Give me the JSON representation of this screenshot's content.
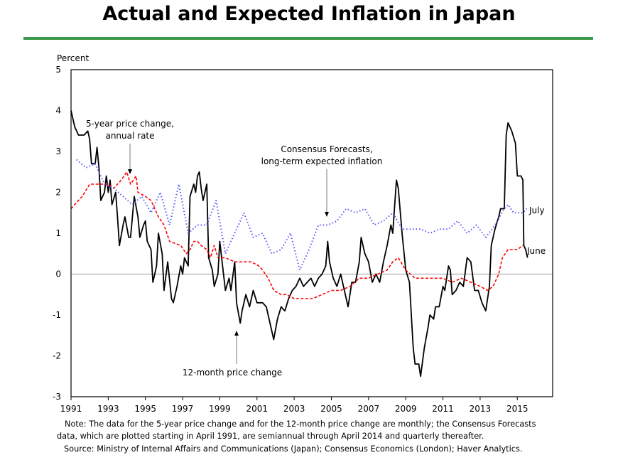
{
  "chart_data": {
    "type": "line",
    "title": "Actual and Expected Inflation in Japan",
    "ylabel": "Percent",
    "ylim": [
      -3,
      5
    ],
    "xlim": [
      1991,
      2016.9
    ],
    "yticks": [
      "5",
      "4",
      "3",
      "2",
      "1",
      "0",
      "-1",
      "-2",
      "-3"
    ],
    "xticks": [
      "1991",
      "1993",
      "1995",
      "1997",
      "1999",
      "2001",
      "2003",
      "2005",
      "2007",
      "2009",
      "2011",
      "2013",
      "2015"
    ],
    "grid": false,
    "zero_line": true,
    "series": [
      {
        "name": "12-month price change",
        "style": "solid",
        "color": "#000000",
        "points": [
          [
            1991.0,
            4.0
          ],
          [
            1991.2,
            3.6
          ],
          [
            1991.4,
            3.4
          ],
          [
            1991.7,
            3.4
          ],
          [
            1991.9,
            3.5
          ],
          [
            1992.0,
            3.3
          ],
          [
            1992.1,
            2.7
          ],
          [
            1992.3,
            2.7
          ],
          [
            1992.4,
            3.1
          ],
          [
            1992.5,
            2.6
          ],
          [
            1992.6,
            1.8
          ],
          [
            1992.8,
            2.0
          ],
          [
            1992.9,
            2.4
          ],
          [
            1993.0,
            2.0
          ],
          [
            1993.1,
            2.3
          ],
          [
            1993.2,
            1.7
          ],
          [
            1993.4,
            2.0
          ],
          [
            1993.5,
            1.4
          ],
          [
            1993.6,
            0.7
          ],
          [
            1993.8,
            1.2
          ],
          [
            1993.9,
            1.4
          ],
          [
            1994.1,
            0.9
          ],
          [
            1994.2,
            0.9
          ],
          [
            1994.4,
            1.9
          ],
          [
            1994.6,
            1.4
          ],
          [
            1994.7,
            0.9
          ],
          [
            1994.9,
            1.2
          ],
          [
            1995.0,
            1.3
          ],
          [
            1995.1,
            0.8
          ],
          [
            1995.3,
            0.6
          ],
          [
            1995.4,
            -0.2
          ],
          [
            1995.6,
            0.2
          ],
          [
            1995.7,
            1.0
          ],
          [
            1995.9,
            0.5
          ],
          [
            1996.0,
            -0.4
          ],
          [
            1996.2,
            0.3
          ],
          [
            1996.4,
            -0.6
          ],
          [
            1996.5,
            -0.7
          ],
          [
            1996.7,
            -0.3
          ],
          [
            1996.9,
            0.2
          ],
          [
            1997.0,
            0.0
          ],
          [
            1997.1,
            0.4
          ],
          [
            1997.3,
            0.2
          ],
          [
            1997.4,
            1.9
          ],
          [
            1997.6,
            2.2
          ],
          [
            1997.7,
            2.0
          ],
          [
            1997.8,
            2.4
          ],
          [
            1997.9,
            2.5
          ],
          [
            1998.0,
            2.1
          ],
          [
            1998.1,
            1.8
          ],
          [
            1998.3,
            2.2
          ],
          [
            1998.4,
            0.4
          ],
          [
            1998.6,
            0.1
          ],
          [
            1998.7,
            -0.3
          ],
          [
            1998.9,
            0.0
          ],
          [
            1999.0,
            0.8
          ],
          [
            1999.1,
            0.4
          ],
          [
            1999.3,
            -0.4
          ],
          [
            1999.5,
            -0.1
          ],
          [
            1999.6,
            -0.4
          ],
          [
            1999.8,
            0.3
          ],
          [
            1999.9,
            -0.7
          ],
          [
            2000.1,
            -1.2
          ],
          [
            2000.2,
            -0.9
          ],
          [
            2000.4,
            -0.5
          ],
          [
            2000.6,
            -0.8
          ],
          [
            2000.8,
            -0.4
          ],
          [
            2001.0,
            -0.7
          ],
          [
            2001.3,
            -0.7
          ],
          [
            2001.5,
            -0.8
          ],
          [
            2001.7,
            -1.2
          ],
          [
            2001.9,
            -1.6
          ],
          [
            2002.1,
            -1.1
          ],
          [
            2002.3,
            -0.8
          ],
          [
            2002.5,
            -0.9
          ],
          [
            2002.7,
            -0.6
          ],
          [
            2002.9,
            -0.4
          ],
          [
            2003.1,
            -0.3
          ],
          [
            2003.3,
            -0.1
          ],
          [
            2003.5,
            -0.3
          ],
          [
            2003.7,
            -0.2
          ],
          [
            2003.9,
            -0.1
          ],
          [
            2004.1,
            -0.3
          ],
          [
            2004.3,
            -0.1
          ],
          [
            2004.5,
            0.0
          ],
          [
            2004.7,
            0.2
          ],
          [
            2004.8,
            0.8
          ],
          [
            2004.9,
            0.3
          ],
          [
            2005.1,
            -0.1
          ],
          [
            2005.3,
            -0.3
          ],
          [
            2005.5,
            0.0
          ],
          [
            2005.7,
            -0.4
          ],
          [
            2005.9,
            -0.8
          ],
          [
            2006.1,
            -0.2
          ],
          [
            2006.3,
            -0.2
          ],
          [
            2006.5,
            0.3
          ],
          [
            2006.6,
            0.9
          ],
          [
            2006.8,
            0.5
          ],
          [
            2007.0,
            0.3
          ],
          [
            2007.2,
            -0.2
          ],
          [
            2007.4,
            0.0
          ],
          [
            2007.6,
            -0.2
          ],
          [
            2007.8,
            0.3
          ],
          [
            2008.0,
            0.7
          ],
          [
            2008.2,
            1.2
          ],
          [
            2008.3,
            1.0
          ],
          [
            2008.5,
            2.3
          ],
          [
            2008.6,
            2.1
          ],
          [
            2008.8,
            1.0
          ],
          [
            2009.0,
            0.1
          ],
          [
            2009.2,
            -0.2
          ],
          [
            2009.4,
            -1.8
          ],
          [
            2009.5,
            -2.2
          ],
          [
            2009.7,
            -2.2
          ],
          [
            2009.8,
            -2.5
          ],
          [
            2010.0,
            -1.8
          ],
          [
            2010.2,
            -1.3
          ],
          [
            2010.3,
            -1.0
          ],
          [
            2010.5,
            -1.1
          ],
          [
            2010.6,
            -0.8
          ],
          [
            2010.8,
            -0.8
          ],
          [
            2011.0,
            -0.3
          ],
          [
            2011.1,
            -0.4
          ],
          [
            2011.3,
            0.2
          ],
          [
            2011.4,
            0.1
          ],
          [
            2011.5,
            -0.5
          ],
          [
            2011.7,
            -0.4
          ],
          [
            2011.9,
            -0.2
          ],
          [
            2012.1,
            -0.3
          ],
          [
            2012.3,
            0.4
          ],
          [
            2012.5,
            0.3
          ],
          [
            2012.7,
            -0.4
          ],
          [
            2012.9,
            -0.4
          ],
          [
            2013.1,
            -0.7
          ],
          [
            2013.3,
            -0.9
          ],
          [
            2013.5,
            -0.3
          ],
          [
            2013.6,
            0.7
          ],
          [
            2013.8,
            1.1
          ],
          [
            2014.0,
            1.4
          ],
          [
            2014.1,
            1.6
          ],
          [
            2014.3,
            1.6
          ],
          [
            2014.4,
            3.4
          ],
          [
            2014.5,
            3.7
          ],
          [
            2014.7,
            3.5
          ],
          [
            2014.9,
            3.2
          ],
          [
            2015.0,
            2.4
          ],
          [
            2015.2,
            2.4
          ],
          [
            2015.3,
            2.3
          ],
          [
            2015.35,
            0.7
          ],
          [
            2015.45,
            0.6
          ],
          [
            2015.55,
            0.4
          ]
        ]
      },
      {
        "name": "5-year price change, annual rate",
        "style": "dashed",
        "color": "#ff0000",
        "points": [
          [
            1991.0,
            1.6
          ],
          [
            1991.2,
            1.7
          ],
          [
            1991.6,
            1.9
          ],
          [
            1992.0,
            2.2
          ],
          [
            1992.5,
            2.2
          ],
          [
            1993.0,
            2.2
          ],
          [
            1993.3,
            2.1
          ],
          [
            1993.7,
            2.3
          ],
          [
            1994.0,
            2.5
          ],
          [
            1994.2,
            2.2
          ],
          [
            1994.5,
            2.4
          ],
          [
            1994.6,
            2.0
          ],
          [
            1995.0,
            1.9
          ],
          [
            1995.3,
            1.8
          ],
          [
            1995.7,
            1.4
          ],
          [
            1996.0,
            1.2
          ],
          [
            1996.3,
            0.8
          ],
          [
            1996.9,
            0.7
          ],
          [
            1997.2,
            0.5
          ],
          [
            1997.4,
            0.6
          ],
          [
            1997.6,
            0.8
          ],
          [
            1997.8,
            0.8
          ],
          [
            1998.0,
            0.7
          ],
          [
            1998.3,
            0.6
          ],
          [
            1998.5,
            0.4
          ],
          [
            1998.7,
            0.7
          ],
          [
            1998.9,
            0.4
          ],
          [
            1999.3,
            0.4
          ],
          [
            1999.8,
            0.3
          ],
          [
            2000.3,
            0.3
          ],
          [
            2000.7,
            0.3
          ],
          [
            2001.1,
            0.2
          ],
          [
            2001.3,
            0.1
          ],
          [
            2001.6,
            -0.1
          ],
          [
            2001.9,
            -0.4
          ],
          [
            2002.3,
            -0.5
          ],
          [
            2002.6,
            -0.5
          ],
          [
            2003.0,
            -0.6
          ],
          [
            2003.5,
            -0.6
          ],
          [
            2004.0,
            -0.6
          ],
          [
            2004.5,
            -0.5
          ],
          [
            2005.0,
            -0.4
          ],
          [
            2005.5,
            -0.4
          ],
          [
            2006.0,
            -0.3
          ],
          [
            2006.5,
            -0.1
          ],
          [
            2007.0,
            -0.1
          ],
          [
            2007.5,
            0.0
          ],
          [
            2008.0,
            0.1
          ],
          [
            2008.3,
            0.3
          ],
          [
            2008.6,
            0.4
          ],
          [
            2009.0,
            0.1
          ],
          [
            2009.5,
            -0.1
          ],
          [
            2010.0,
            -0.1
          ],
          [
            2010.5,
            -0.1
          ],
          [
            2011.0,
            -0.1
          ],
          [
            2011.5,
            -0.2
          ],
          [
            2012.0,
            -0.1
          ],
          [
            2012.5,
            -0.2
          ],
          [
            2013.0,
            -0.3
          ],
          [
            2013.4,
            -0.4
          ],
          [
            2013.7,
            -0.3
          ],
          [
            2014.0,
            0.0
          ],
          [
            2014.2,
            0.4
          ],
          [
            2014.5,
            0.6
          ],
          [
            2015.0,
            0.6
          ],
          [
            2015.3,
            0.7
          ]
        ]
      },
      {
        "name": "Consensus Forecasts, long-term expected inflation",
        "style": "dotted",
        "color": "#5555ff",
        "points": [
          [
            1991.3,
            2.8
          ],
          [
            1991.8,
            2.6
          ],
          [
            1992.3,
            2.7
          ],
          [
            1992.8,
            2.2
          ],
          [
            1993.3,
            2.1
          ],
          [
            1993.8,
            1.9
          ],
          [
            1994.3,
            1.7
          ],
          [
            1994.8,
            1.9
          ],
          [
            1995.3,
            1.5
          ],
          [
            1995.8,
            2.0
          ],
          [
            1996.3,
            1.2
          ],
          [
            1996.8,
            2.2
          ],
          [
            1997.3,
            1.0
          ],
          [
            1997.8,
            1.2
          ],
          [
            1998.3,
            1.2
          ],
          [
            1998.8,
            1.8
          ],
          [
            1999.3,
            0.5
          ],
          [
            1999.8,
            1.0
          ],
          [
            2000.3,
            1.5
          ],
          [
            2000.8,
            0.9
          ],
          [
            2001.3,
            1.0
          ],
          [
            2001.8,
            0.5
          ],
          [
            2002.3,
            0.6
          ],
          [
            2002.8,
            1.0
          ],
          [
            2003.3,
            0.1
          ],
          [
            2003.8,
            0.6
          ],
          [
            2004.3,
            1.2
          ],
          [
            2004.8,
            1.2
          ],
          [
            2005.3,
            1.3
          ],
          [
            2005.8,
            1.6
          ],
          [
            2006.3,
            1.5
          ],
          [
            2006.8,
            1.6
          ],
          [
            2007.3,
            1.2
          ],
          [
            2007.8,
            1.3
          ],
          [
            2008.3,
            1.5
          ],
          [
            2008.8,
            1.1
          ],
          [
            2009.3,
            1.1
          ],
          [
            2009.8,
            1.1
          ],
          [
            2010.3,
            1.0
          ],
          [
            2010.8,
            1.1
          ],
          [
            2011.3,
            1.1
          ],
          [
            2011.8,
            1.3
          ],
          [
            2012.3,
            1.0
          ],
          [
            2012.8,
            1.2
          ],
          [
            2013.3,
            0.9
          ],
          [
            2013.8,
            1.2
          ],
          [
            2014.3,
            1.6
          ],
          [
            2014.5,
            1.7
          ],
          [
            2014.8,
            1.5
          ],
          [
            2015.0,
            1.5
          ],
          [
            2015.3,
            1.5
          ],
          [
            2015.5,
            1.6
          ]
        ]
      }
    ],
    "annotations": {
      "five_year_line1": "5-year price change,",
      "five_year_line2": "annual rate",
      "consensus_line1": "Consensus Forecasts,",
      "consensus_line2": "long-term expected  inflation",
      "twelve_month": "12-month price change",
      "july": "July",
      "june": "June"
    }
  },
  "notes": {
    "line1": "Note:  The data for the 5-year price change and for the 12-month price change are monthly; the Consensus Forecasts",
    "line2": "data, which are plotted starting in April 1991, are semiannual through April 2014 and quarterly thereafter.",
    "line3": "Source:  Ministry of Internal Affairs and Communications (Japan); Consensus Economics (London); Haver Analytics."
  }
}
